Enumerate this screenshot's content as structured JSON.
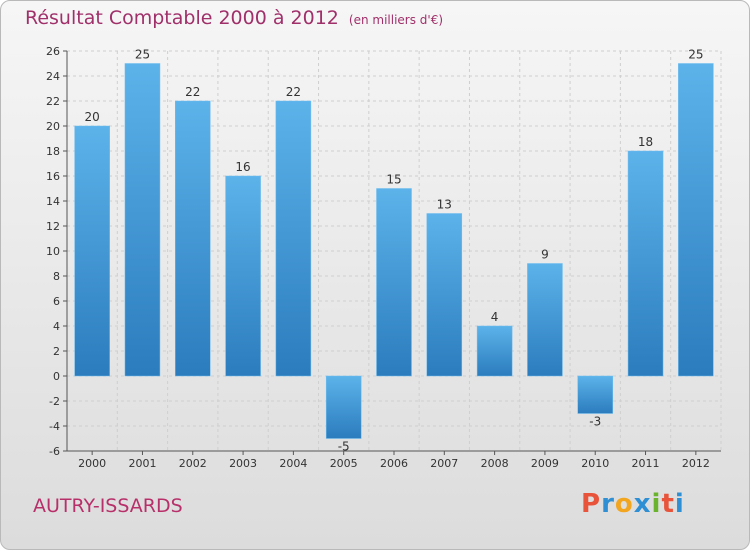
{
  "header": {
    "title": "Résultat Comptable 2000 à 2012",
    "unit": "(en milliers d'€)"
  },
  "footer": {
    "place": "AUTRY-ISSARDS",
    "logo": [
      "P",
      "r",
      "o",
      "x",
      "i",
      "t",
      "i"
    ]
  },
  "chart_data": {
    "type": "bar",
    "title": "Résultat Comptable 2000 à 2012",
    "subtitle": "(en milliers d'€)",
    "xlabel": "",
    "ylabel": "",
    "categories": [
      "2000",
      "2001",
      "2002",
      "2003",
      "2004",
      "2005",
      "2006",
      "2007",
      "2008",
      "2009",
      "2010",
      "2011",
      "2012"
    ],
    "values": [
      20,
      25,
      22,
      16,
      22,
      -5,
      15,
      13,
      4,
      9,
      -3,
      18,
      25
    ],
    "ylim": [
      -6,
      26
    ],
    "yticks": [
      -6,
      -4,
      -2,
      0,
      2,
      4,
      6,
      8,
      10,
      12,
      14,
      16,
      18,
      20,
      22,
      24,
      26
    ],
    "grid": true,
    "colors": {
      "bar_light": "#5cb3ea",
      "bar_dark": "#2b7cbd",
      "grid": "#cfcfcf"
    }
  }
}
